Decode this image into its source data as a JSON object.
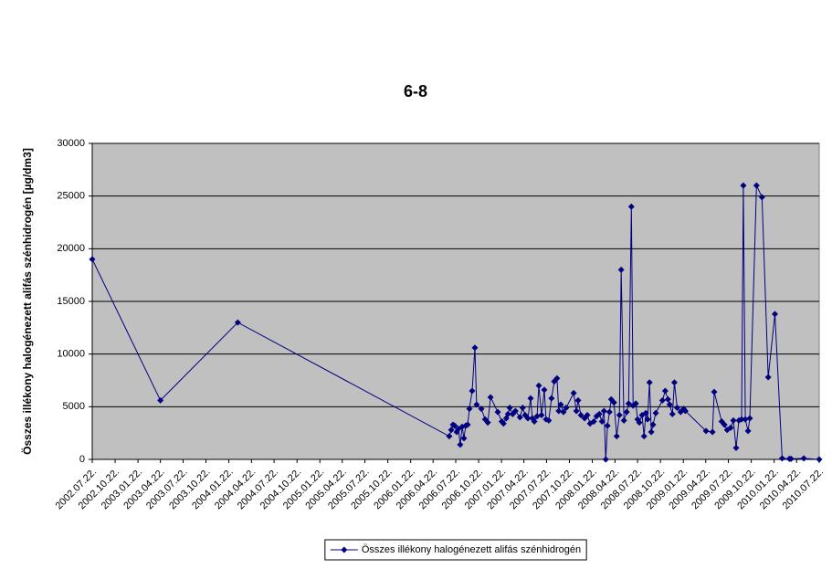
{
  "chart_data": {
    "type": "line",
    "title": "6-8",
    "y_label": "Összes illékony halogénezett alifás szénhidrogén [µg/dm3]",
    "x": [
      "2002.07.22.",
      "2003.04.22.",
      "2004.02.27.",
      "2006.06.26.",
      "2006.07.04.",
      "2006.07.11.",
      "2006.07.18.",
      "2006.07.26.",
      "2006.08.02.",
      "2006.08.09.",
      "2006.08.17.",
      "2006.08.24.",
      "2006.08.31.",
      "2006.09.08.",
      "2006.09.15.",
      "2006.09.26.",
      "2006.10.07.",
      "2006.10.14.",
      "2006.11.02.",
      "2006.11.17.",
      "2006.11.28.",
      "2006.12.09.",
      "2007.01.07.",
      "2007.01.23.",
      "2007.01.30.",
      "2007.02.10.",
      "2007.02.17.",
      "2007.02.24.",
      "2007.03.08.",
      "2007.03.19.",
      "2007.04.06.",
      "2007.04.17.",
      "2007.04.27.",
      "2007.05.08.",
      "2007.05.19.",
      "2007.05.26.",
      "2007.06.03.",
      "2007.06.14.",
      "2007.06.21.",
      "2007.07.02.",
      "2007.07.13.",
      "2007.07.20.",
      "2007.07.31.",
      "2007.08.11.",
      "2007.08.22.",
      "2007.09.02.",
      "2007.09.09.",
      "2007.09.17.",
      "2007.09.28.",
      "2007.10.09.",
      "2007.11.08.",
      "2007.11.19.",
      "2007.11.26.",
      "2007.12.07.",
      "2007.12.22.",
      "2008.01.02.",
      "2008.01.13.",
      "2008.01.28.",
      "2008.02.08.",
      "2008.02.19.",
      "2008.03.01.",
      "2008.03.09.",
      "2008.03.16.",
      "2008.03.23.",
      "2008.03.31.",
      "2008.04.07.",
      "2008.04.18.",
      "2008.04.29.",
      "2008.05.10.",
      "2008.05.17.",
      "2008.05.28.",
      "2008.06.08.",
      "2008.06.16.",
      "2008.06.27.",
      "2008.07.04.",
      "2008.07.15.",
      "2008.07.22.",
      "2008.07.29.",
      "2008.08.09.",
      "2008.08.17.",
      "2008.08.24.",
      "2008.08.31.",
      "2008.09.08.",
      "2008.09.15.",
      "2008.09.22.",
      "2008.10.03.",
      "2008.10.30.",
      "2008.11.10.",
      "2008.11.21.",
      "2008.11.28.",
      "2008.12.09.",
      "2008.12.17.",
      "2008.12.28.",
      "2009.01.11.",
      "2009.01.23.",
      "2009.01.30.",
      "2009.04.23.",
      "2009.05.19.",
      "2009.05.26.",
      "2009.06.25.",
      "2009.07.06.",
      "2009.07.17.",
      "2009.07.31.",
      "2009.08.11.",
      "2009.08.22.",
      "2009.09.02.",
      "2009.09.13.",
      "2009.09.20.",
      "2009.09.28.",
      "2009.10.09.",
      "2009.10.16.",
      "2009.11.12.",
      "2009.12.04.",
      "2009.12.29.",
      "2010.01.25.",
      "2010.02.23.",
      "2010.03.24.",
      "2010.03.31.",
      "2010.05.21.",
      "2010.07.22."
    ],
    "series": [
      {
        "name": "Összes illékony halogénezett alifás szénhidrogén",
        "color": "#000080",
        "values": [
          19000,
          5600,
          13000,
          2200,
          2800,
          3300,
          3200,
          2600,
          2900,
          1400,
          3100,
          2000,
          3200,
          3300,
          4800,
          6500,
          10600,
          5200,
          4800,
          3800,
          3500,
          5900,
          4500,
          3600,
          3400,
          3900,
          4300,
          4900,
          4300,
          4600,
          4000,
          4900,
          4200,
          3900,
          5800,
          3900,
          3600,
          4100,
          7000,
          4200,
          6600,
          3800,
          3700,
          5800,
          7400,
          7700,
          4600,
          5200,
          4500,
          4900,
          6300,
          4600,
          5600,
          4200,
          3900,
          4200,
          3400,
          3600,
          4100,
          4300,
          3600,
          4600,
          0,
          3200,
          4500,
          5700,
          5400,
          2200,
          4200,
          18000,
          3700,
          4500,
          5300,
          24000,
          5100,
          5300,
          3800,
          3500,
          4200,
          2200,
          4400,
          3800,
          7300,
          2600,
          3300,
          4400,
          5600,
          6500,
          5700,
          5200,
          4300,
          7300,
          4900,
          4500,
          4800,
          4600,
          2700,
          2600,
          6400,
          3600,
          3300,
          2800,
          3000,
          3700,
          1100,
          3700,
          3800,
          26000,
          3800,
          2700,
          3900,
          26000,
          24900,
          7800,
          13800,
          100,
          50,
          50,
          100,
          0
        ]
      }
    ],
    "xlim": [
      "2002.07.22.",
      "2010.07.22."
    ],
    "xticks": [
      "2002.07.22.",
      "2002.10.22.",
      "2003.01.22.",
      "2003.04.22.",
      "2003.07.22.",
      "2003.10.22.",
      "2004.01.22.",
      "2004.04.22.",
      "2004.07.22.",
      "2004.10.22.",
      "2005.01.22.",
      "2005.04.22.",
      "2005.07.22.",
      "2005.10.22.",
      "2006.01.22.",
      "2006.04.22.",
      "2006.07.22.",
      "2006.10.22.",
      "2007.01.22.",
      "2007.04.22.",
      "2007.07.22.",
      "2007.10.22.",
      "2008.01.22.",
      "2008.04.22.",
      "2008.07.22.",
      "2008.10.22.",
      "2009.01.22.",
      "2009.04.22.",
      "2009.07.22.",
      "2009.10.22.",
      "2010.01.22.",
      "2010.04.22.",
      "2010.07.22."
    ],
    "ylim": [
      0,
      30000
    ],
    "yticks": [
      0,
      5000,
      10000,
      15000,
      20000,
      25000,
      30000
    ],
    "grid": true,
    "plot_background": "#c0c0c0",
    "legend": "bottom"
  }
}
